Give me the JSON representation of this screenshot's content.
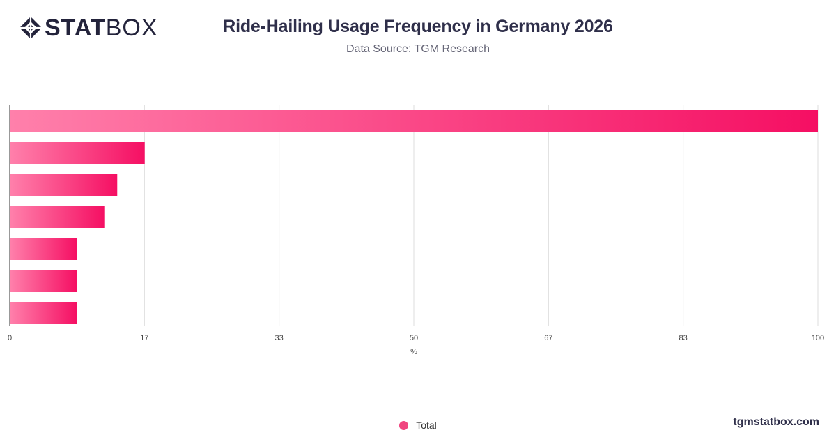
{
  "brand": {
    "logo_bold": "STAT",
    "logo_light": "BOX",
    "site": "tgmstatbox.com"
  },
  "header": {
    "title": "Ride-Hailing Usage Frequency in Germany 2026",
    "subtitle": "Data Source: TGM Research"
  },
  "colors": {
    "bar_start": "#ff80ab",
    "bar_end": "#f50f63",
    "legend_swatch": "#f0457f",
    "grid": "#dddddd",
    "axis": "#333333",
    "tick_text": "#444444"
  },
  "chart_data": {
    "type": "bar",
    "orientation": "horizontal",
    "categories": [
      "",
      "",
      "",
      "",
      "",
      "",
      ""
    ],
    "series": [
      {
        "name": "Total",
        "values": [
          100,
          16.7,
          13.3,
          11.7,
          8.3,
          8.3,
          8.3
        ]
      }
    ],
    "xlabel": "%",
    "xlim": [
      0,
      100
    ],
    "xticks": [
      "0",
      "17",
      "33",
      "50",
      "67",
      "83",
      "100"
    ],
    "grid": true,
    "legend_position": "bottom-center"
  }
}
